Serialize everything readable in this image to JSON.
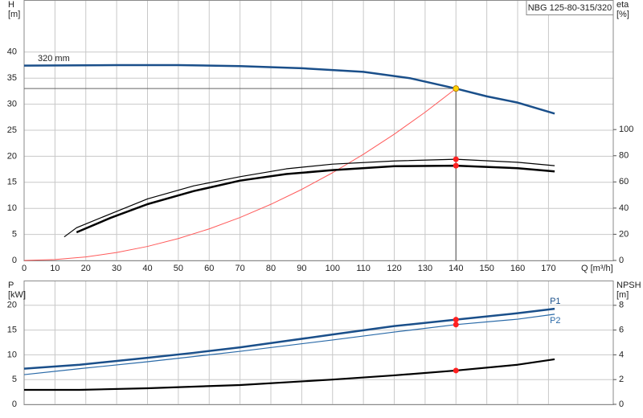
{
  "chart_data": [
    {
      "type": "line",
      "title": "NBG 125-80-315/320",
      "y_label": [
        "H",
        "[m]"
      ],
      "y2_label": [
        "eta",
        "[%]"
      ],
      "x_label": "Q [m³/h]",
      "annotation": "320 mm",
      "xlim": [
        0,
        191
      ],
      "xticks": [
        0,
        10,
        20,
        30,
        40,
        50,
        60,
        70,
        80,
        90,
        100,
        110,
        120,
        130,
        140,
        150,
        160,
        170
      ],
      "ylim": [
        0,
        50
      ],
      "yticks": [
        0,
        5,
        10,
        15,
        20,
        25,
        30,
        35,
        40
      ],
      "y2lim": [
        0,
        199
      ],
      "y2ticks": [
        0,
        20,
        40,
        60,
        80,
        100
      ],
      "grid": true,
      "series": [
        {
          "color": "#ff5a5a",
          "line_width": 1,
          "x": [
            0,
            10,
            20,
            30,
            40,
            50,
            60,
            70,
            80,
            90,
            100,
            110,
            120,
            130,
            140
          ],
          "values": [
            0,
            0.17,
            0.67,
            1.52,
            2.69,
            4.21,
            6.06,
            8.25,
            10.78,
            13.64,
            16.84,
            20.38,
            24.24,
            28.45,
            33.0
          ]
        },
        {
          "color": "#1a4f8a",
          "line_width": 2.5,
          "x": [
            0,
            30,
            50,
            70,
            90,
            110,
            125,
            140,
            150,
            160,
            172
          ],
          "values": [
            37.4,
            37.5,
            37.5,
            37.3,
            36.9,
            36.2,
            35.0,
            33.0,
            31.5,
            30.3,
            28.2
          ]
        },
        {
          "color": "#000000",
          "line_width": 1.2,
          "axis": "y2",
          "x": [
            13,
            17,
            28,
            40,
            55,
            70,
            85,
            100,
            120,
            140,
            160,
            172
          ],
          "values": [
            18,
            25,
            35.6,
            47,
            57,
            64,
            70,
            73.6,
            76,
            77.3,
            75,
            72.4
          ]
        },
        {
          "color": "#000000",
          "line_width": 2.5,
          "axis": "y2",
          "x": [
            17,
            28,
            40,
            55,
            70,
            85,
            100,
            120,
            140,
            160,
            172
          ],
          "values": [
            21.5,
            32.5,
            43,
            53,
            61,
            66,
            69,
            72,
            72.4,
            70.5,
            68
          ]
        }
      ],
      "markers": [
        {
          "x": 140,
          "y": 33,
          "color": "#ffd400",
          "guide": true
        },
        {
          "x": 140,
          "y": 77.3,
          "color": "#ff2020",
          "axis": "y2"
        },
        {
          "x": 140,
          "y": 72.4,
          "color": "#ff2020",
          "axis": "y2"
        }
      ]
    },
    {
      "type": "line",
      "y_label": [
        "P",
        "[kW]"
      ],
      "y2_label": [
        "NPSH",
        "[m]"
      ],
      "xlim": [
        0,
        191
      ],
      "xticks": [
        0,
        10,
        20,
        30,
        40,
        50,
        60,
        70,
        80,
        90,
        100,
        110,
        120,
        130,
        140,
        150,
        160,
        170
      ],
      "ylim": [
        0,
        25
      ],
      "yticks": [
        0,
        5,
        10,
        15,
        20
      ],
      "y2lim": [
        0,
        10
      ],
      "y2ticks": [
        0,
        2,
        4,
        6,
        8
      ],
      "grid": true,
      "series": [
        {
          "name": "P1",
          "color": "#1a4f8a",
          "line_width": 2.5,
          "x": [
            0,
            18,
            40,
            55,
            70,
            85,
            100,
            120,
            140,
            160,
            172
          ],
          "values": [
            7.2,
            8.0,
            9.4,
            10.4,
            11.5,
            12.8,
            14.1,
            15.8,
            17.1,
            18.4,
            19.3
          ]
        },
        {
          "name": "P2",
          "color": "#2a6aa8",
          "line_width": 1.2,
          "x": [
            0,
            18,
            40,
            70,
            100,
            120,
            140,
            160,
            172
          ],
          "values": [
            6.0,
            7.2,
            8.6,
            10.7,
            13.0,
            14.6,
            16.1,
            17.2,
            18.2
          ]
        },
        {
          "color": "#000000",
          "line_width": 2.2,
          "axis": "y2",
          "x": [
            0,
            18,
            40,
            70,
            100,
            120,
            140,
            160,
            172
          ],
          "values": [
            1.17,
            1.17,
            1.3,
            1.56,
            2.0,
            2.34,
            2.73,
            3.2,
            3.64
          ]
        }
      ],
      "markers": [
        {
          "x": 140,
          "y": 17.1,
          "color": "#ff2020"
        },
        {
          "x": 140,
          "y": 16.1,
          "color": "#ff2020"
        },
        {
          "x": 140,
          "y": 2.73,
          "color": "#ff2020",
          "axis": "y2"
        }
      ]
    }
  ]
}
